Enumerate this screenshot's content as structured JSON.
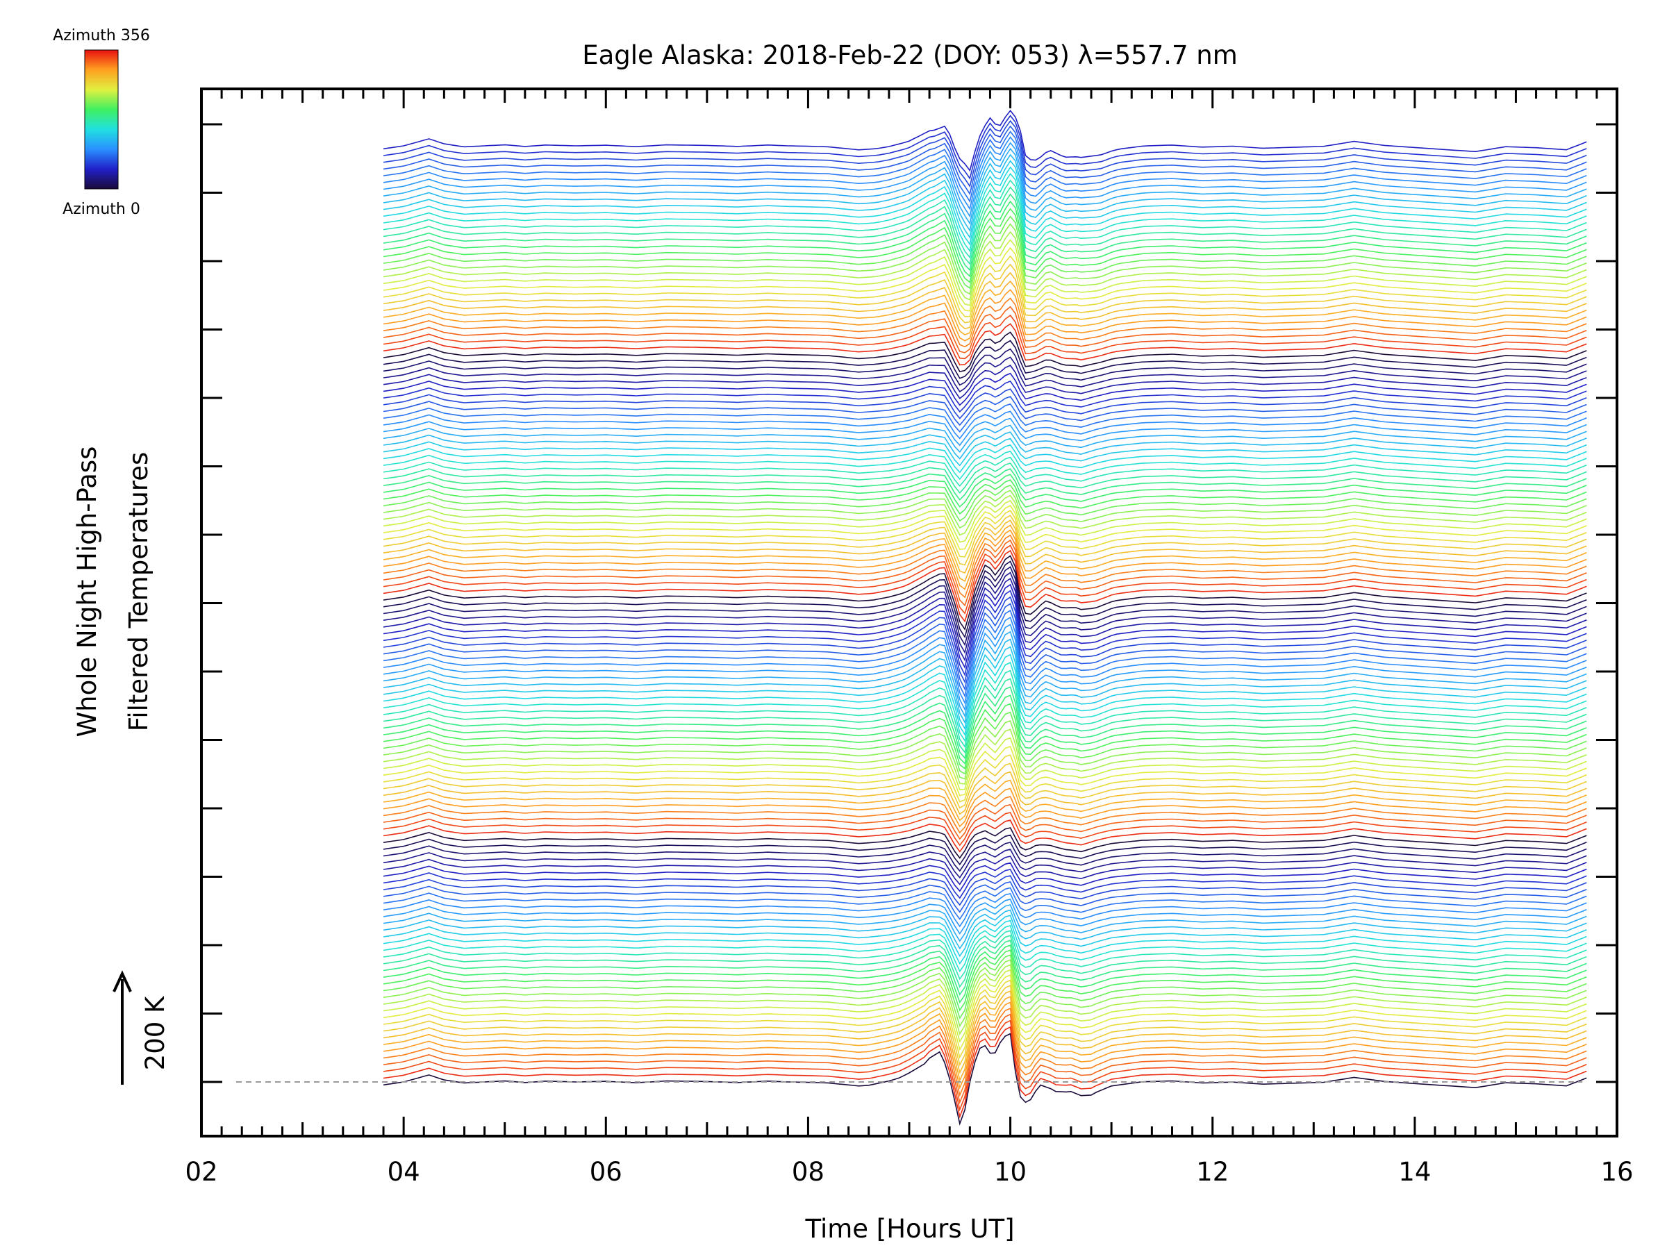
{
  "chart_data": {
    "type": "line",
    "title": "Eagle Alaska: 2018-Feb-22 (DOY: 053) λ=557.7 nm",
    "xlabel": "Time [Hours UT]",
    "ylabel_line1": "Whole Night High-Pass",
    "ylabel_line2": "Filtered Temperatures",
    "xlim": [
      2,
      16
    ],
    "x_tick_labels": [
      "02",
      "04",
      "06",
      "08",
      "10",
      "12",
      "14",
      "16"
    ],
    "x_tick_values": [
      2,
      4,
      6,
      8,
      10,
      12,
      14,
      16
    ],
    "scale_bar_label": "200 K",
    "colorbar": {
      "top_label": "Azimuth 356",
      "bottom_label": "Azimuth 0",
      "colormap": "rainbow",
      "colors": [
        "#1a0a3a",
        "#2020c8",
        "#2a90ff",
        "#20e0e0",
        "#40f060",
        "#e0f040",
        "#ffa020",
        "#e81010"
      ]
    },
    "series_count": 140,
    "time_start": 3.8,
    "time_end": 15.7,
    "baseline_profile": {
      "x": [
        3.8,
        4.0,
        4.25,
        4.4,
        4.6,
        4.8,
        5.0,
        5.2,
        5.4,
        5.7,
        6.0,
        6.3,
        6.6,
        7.0,
        7.3,
        7.6,
        7.8,
        8.0,
        8.2,
        8.5,
        8.8,
        9.0,
        9.2,
        9.35,
        9.45,
        9.5,
        9.58,
        9.65,
        9.75,
        9.85,
        9.95,
        10.0,
        10.08,
        10.15,
        10.25,
        10.4,
        10.55,
        10.7,
        10.85,
        11.0,
        11.3,
        11.6,
        11.9,
        12.2,
        12.5,
        12.8,
        13.1,
        13.4,
        13.7,
        14.0,
        14.3,
        14.6,
        14.9,
        15.2,
        15.5,
        15.7
      ],
      "y": [
        -15,
        0,
        35,
        10,
        -5,
        0,
        5,
        -3,
        4,
        0,
        3,
        -4,
        5,
        2,
        -3,
        4,
        0,
        -2,
        -5,
        -20,
        -10,
        5,
        30,
        10,
        -60,
        -80,
        -10,
        15,
        20,
        0,
        25,
        30,
        -30,
        -45,
        -25,
        -30,
        -50,
        -60,
        -35,
        -20,
        -5,
        0,
        -10,
        -5,
        -15,
        -10,
        -5,
        20,
        0,
        -10,
        -20,
        -30,
        -5,
        -10,
        -20,
        20
      ]
    },
    "wave_profile": {
      "x": [
        3.8,
        8.6,
        8.9,
        9.15,
        9.3,
        9.42,
        9.52,
        9.62,
        9.72,
        9.82,
        9.92,
        10.0,
        10.08,
        10.18,
        10.3,
        10.45,
        10.6,
        10.8,
        11.0,
        11.3,
        15.7
      ],
      "y": [
        0,
        0,
        20,
        60,
        120,
        20,
        -150,
        40,
        160,
        110,
        180,
        190,
        -30,
        -60,
        10,
        -10,
        5,
        -20,
        0,
        5,
        0
      ]
    }
  }
}
